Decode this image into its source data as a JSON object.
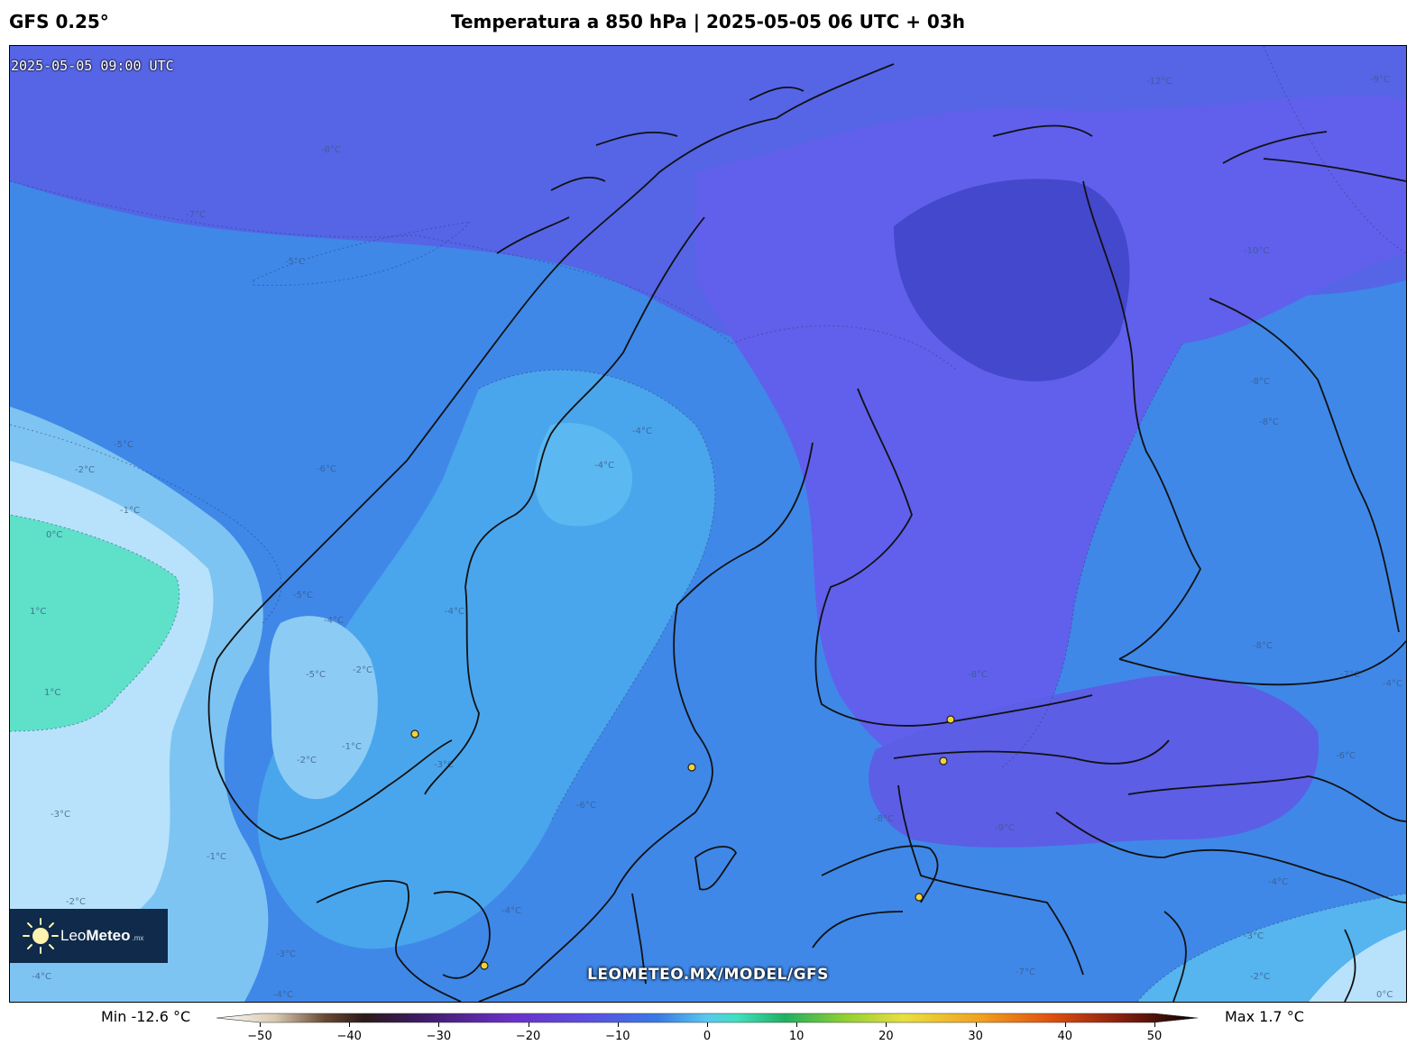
{
  "header": {
    "model": "GFS 0.25°",
    "title": "Temperatura a 850 hPa | 2025-05-05 06 UTC + 03h"
  },
  "map": {
    "valid_time": "2025-05-05 09:00 UTC",
    "watermark": "LEOMETEO.MX/MODEL/GFS",
    "contour_labels": [
      "-12°C",
      "-9°C",
      "-8°C",
      "-7°C",
      "-6°C",
      "-5°C",
      "-4°C",
      "-3°C",
      "-2°C",
      "-1°C",
      "0°C",
      "1°C"
    ],
    "colors": {
      "cold": "#4a4bd6",
      "cool": "#3a82e6",
      "mild": "#49b2ee",
      "warm": "#b8e2fb",
      "zero": "#5fe0c8",
      "coast": "#101010",
      "city_marker": "#f2d43a"
    }
  },
  "logo": {
    "brand_light": "Leo",
    "brand_bold": "Meteo",
    "tld": ".mx"
  },
  "colorbar": {
    "min_label": "Min -12.6 °C",
    "max_label": "Max 1.7 °C",
    "ticks": [
      "−50",
      "−40",
      "−30",
      "−20",
      "−10",
      "0",
      "10",
      "20",
      "30",
      "40",
      "50"
    ],
    "range": [
      -50,
      50
    ]
  }
}
